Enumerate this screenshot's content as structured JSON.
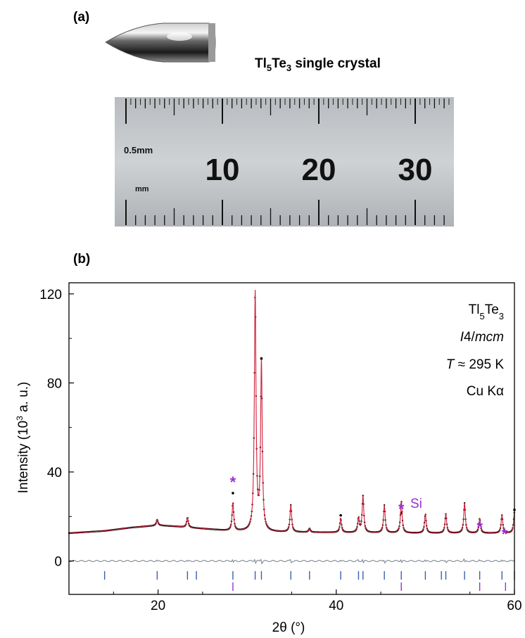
{
  "panel_a": {
    "label": "(a)",
    "caption_main": "Tl",
    "caption_sub": "5",
    "caption_main2": "Te",
    "caption_sub2": "3",
    "caption_rest": " single crystal",
    "ruler": {
      "small_label": "0.5mm",
      "unit_label": "mm",
      "numbers": [
        "10",
        "20",
        "30"
      ]
    }
  },
  "panel_b": {
    "label": "(b)",
    "legend": {
      "compound_main": "Tl",
      "compound_sub1": "5",
      "compound_main2": "Te",
      "compound_sub2": "3",
      "space_group_italic_1": "I",
      "space_group_mid": "4/",
      "space_group_italic_2": "mcm",
      "temp_italic": "T",
      "temp_rest": " ≈ 295 K",
      "radiation": "Cu Kα"
    },
    "si_label": "Si"
  },
  "colors": {
    "observed": "#000000",
    "calculated": "#d0203a",
    "difference": "#808890",
    "ticks_phase": "#3a5fb0",
    "ticks_si": "#9b30d0",
    "asterisk": "#9b30d0"
  },
  "chart_data": {
    "type": "line",
    "xlabel": "2θ (°)",
    "ylabel": "Intensity (10³ a. u.)",
    "xlim": [
      10,
      60
    ],
    "ylim": [
      -15,
      125
    ],
    "xticks": [
      20,
      40,
      60
    ],
    "yticks": [
      0,
      40,
      80,
      120
    ],
    "background": [
      [
        10,
        12.5
      ],
      [
        14,
        13.5
      ],
      [
        17,
        15
      ],
      [
        20,
        16
      ],
      [
        22,
        15.5
      ],
      [
        25,
        14.5
      ],
      [
        28,
        13.5
      ],
      [
        32,
        13
      ],
      [
        40,
        12.8
      ],
      [
        50,
        12.5
      ],
      [
        60,
        12.5
      ]
    ],
    "peaks": [
      {
        "x": 19.9,
        "y": 18.5
      },
      {
        "x": 23.3,
        "y": 19.5
      },
      {
        "x": 28.4,
        "y": 26
      },
      {
        "x": 30.9,
        "y": 120
      },
      {
        "x": 31.6,
        "y": 88
      },
      {
        "x": 34.9,
        "y": 25
      },
      {
        "x": 37.0,
        "y": 14.5
      },
      {
        "x": 40.5,
        "y": 19
      },
      {
        "x": 42.5,
        "y": 19
      },
      {
        "x": 43.0,
        "y": 29
      },
      {
        "x": 45.4,
        "y": 25
      },
      {
        "x": 47.3,
        "y": 27
      },
      {
        "x": 50.0,
        "y": 21
      },
      {
        "x": 52.3,
        "y": 21
      },
      {
        "x": 54.4,
        "y": 26
      },
      {
        "x": 56.1,
        "y": 19
      },
      {
        "x": 58.6,
        "y": 20.5
      },
      {
        "x": 60.0,
        "y": 22
      }
    ],
    "observed_outliers": [
      {
        "x": 28.4,
        "y": 30.5
      },
      {
        "x": 31.6,
        "y": 91
      },
      {
        "x": 40.5,
        "y": 20.5
      },
      {
        "x": 47.3,
        "y": 21.5
      },
      {
        "x": 60.0,
        "y": 23
      }
    ],
    "phase_ticks": [
      14.0,
      19.9,
      23.3,
      24.3,
      28.4,
      30.9,
      31.6,
      34.9,
      37.0,
      40.5,
      42.5,
      43.0,
      45.4,
      47.3,
      50.0,
      51.8,
      52.3,
      54.4,
      56.1,
      58.6,
      60.0
    ],
    "si_ticks": [
      28.4,
      47.3,
      56.1,
      59.0
    ],
    "si_markers": [
      {
        "x": 28.4,
        "y": 35
      },
      {
        "x": 47.3,
        "y": 23
      },
      {
        "x": 56.1,
        "y": 14.5
      },
      {
        "x": 58.9,
        "y": 11.5
      }
    ]
  }
}
